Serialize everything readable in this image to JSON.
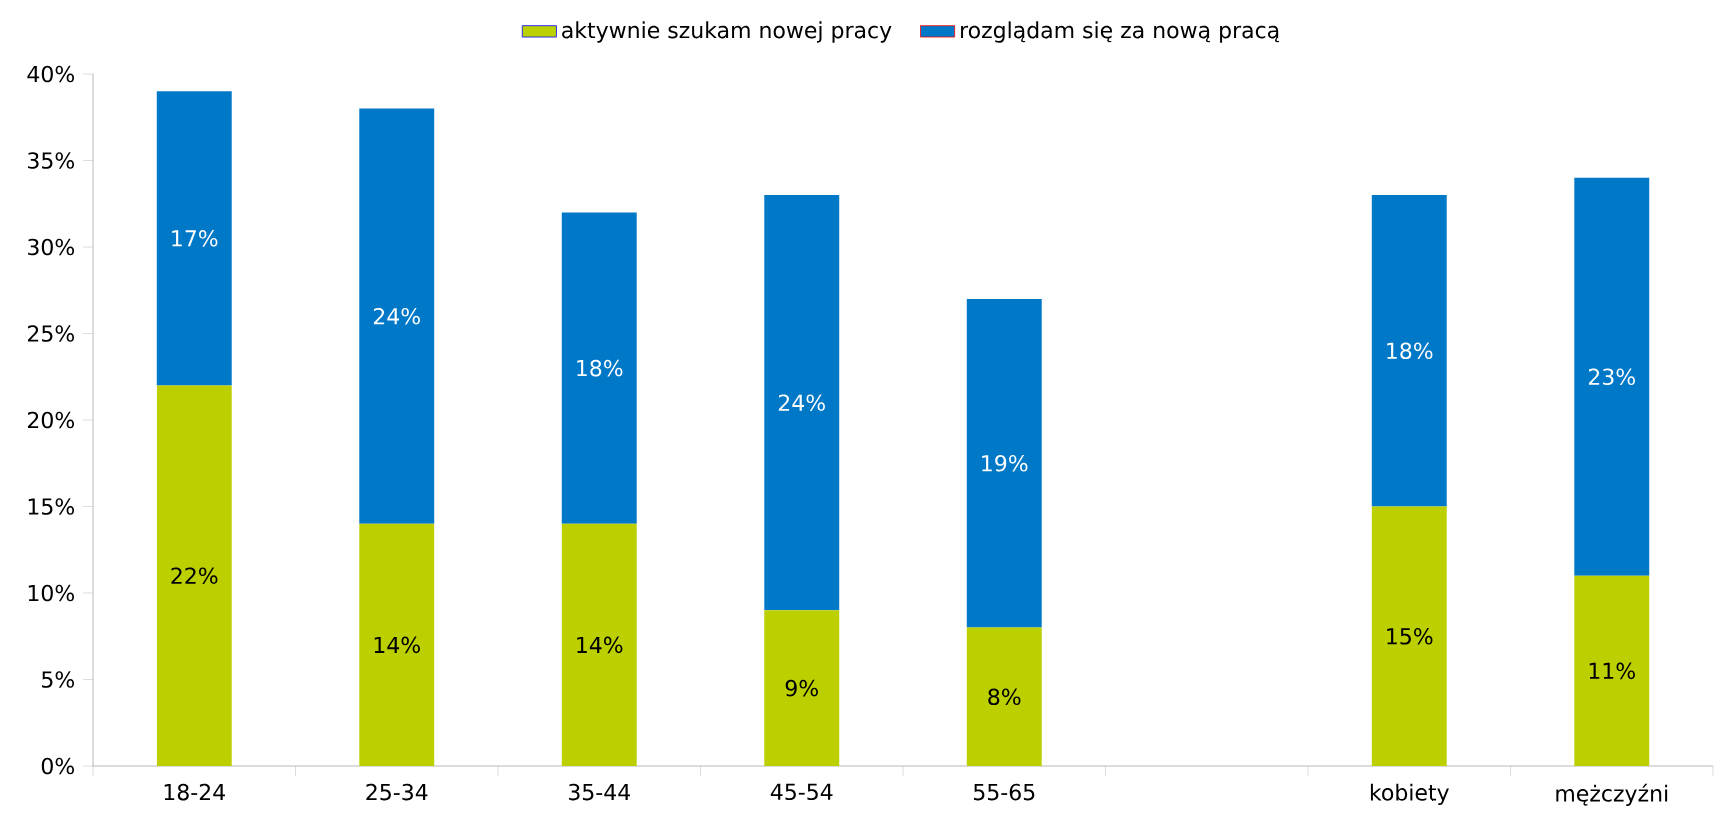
{
  "chart_data": {
    "type": "bar",
    "stacked": true,
    "legend": "top",
    "categories": [
      "18-24",
      "25-34",
      "35-44",
      "45-54",
      "55-65",
      null,
      "kobiety",
      "mężczyźni"
    ],
    "series": [
      {
        "name": "aktywnie szukam nowej pracy",
        "color": "#bcd000",
        "values": [
          22,
          14,
          14,
          9,
          8,
          null,
          15,
          11
        ],
        "value_labels": [
          "22%",
          "14%",
          "14%",
          "9%",
          "8%",
          null,
          "15%",
          "11%"
        ]
      },
      {
        "name": "rozglądam się za nową pracą",
        "color": "#0078c8",
        "values": [
          17,
          24,
          18,
          24,
          19,
          null,
          18,
          23
        ],
        "value_labels": [
          "17%",
          "24%",
          "18%",
          "24%",
          "19%",
          null,
          "18%",
          "23%"
        ]
      }
    ],
    "ylim": [
      0,
      40
    ],
    "yticks": [
      {
        "value": 0,
        "label": "0%"
      },
      {
        "value": 5,
        "label": "5%"
      },
      {
        "value": 10,
        "label": "10%"
      },
      {
        "value": 15,
        "label": "15%"
      },
      {
        "value": 20,
        "label": "20%"
      },
      {
        "value": 25,
        "label": "25%"
      },
      {
        "value": 30,
        "label": "30%"
      },
      {
        "value": 35,
        "label": "35%"
      },
      {
        "value": 40,
        "label": "40%"
      }
    ],
    "grid": false
  }
}
